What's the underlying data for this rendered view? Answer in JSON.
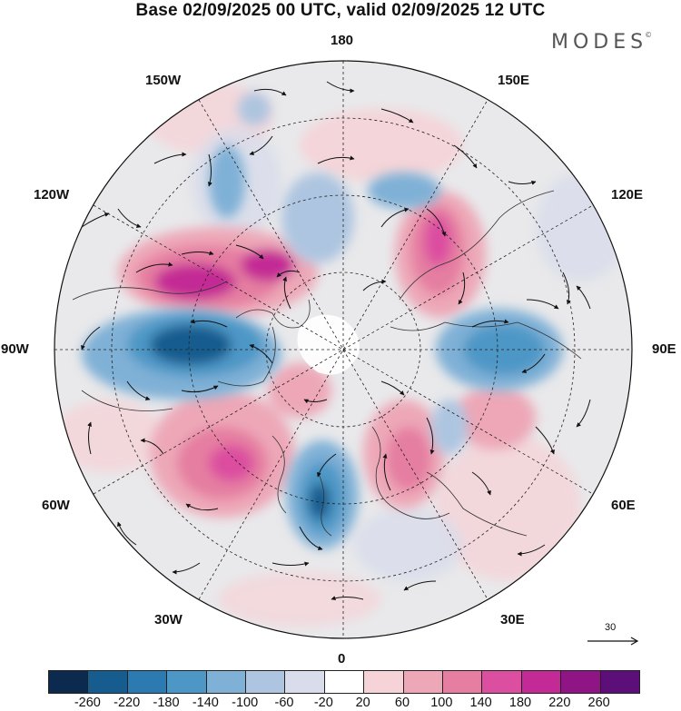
{
  "title": "Base 02/09/2025 00 UTC, valid 02/09/2025 12 UTC",
  "brand": "MODES",
  "brand_mark": "©",
  "longitude_labels": {
    "top": "180",
    "bottom": "0",
    "left": "90W",
    "right": "90E",
    "upper_left_1": "150W",
    "upper_left_2": "120W",
    "upper_right_1": "150E",
    "upper_right_2": "120E",
    "lower_left_1": "60W",
    "lower_left_2": "30W",
    "lower_right_1": "60E",
    "lower_right_2": "30E"
  },
  "reference_vector": {
    "label": "30"
  },
  "colorbar": {
    "ticks": [
      "-260",
      "-220",
      "-180",
      "-140",
      "-100",
      "-60",
      "-20",
      "20",
      "60",
      "100",
      "140",
      "180",
      "220",
      "260"
    ],
    "colors": [
      "#0c2a4e",
      "#175c8e",
      "#2b7ab2",
      "#4d97c6",
      "#7fb0d6",
      "#adc5e0",
      "#d8dceb",
      "#ffffff",
      "#f5d3d7",
      "#eda7b7",
      "#e57ea1",
      "#dc4ea0",
      "#c42a95",
      "#8f1584",
      "#5c0f78"
    ]
  },
  "chart_data": {
    "type": "map",
    "projection": "north polar stereographic",
    "field": "anomaly (shaded) with wind vectors",
    "reference_vector_magnitude": 30,
    "color_levels": [
      -260,
      -220,
      -180,
      -140,
      -100,
      -60,
      -20,
      20,
      60,
      100,
      140,
      180,
      220,
      260
    ],
    "colorbar_range": [
      -300,
      300
    ]
  }
}
